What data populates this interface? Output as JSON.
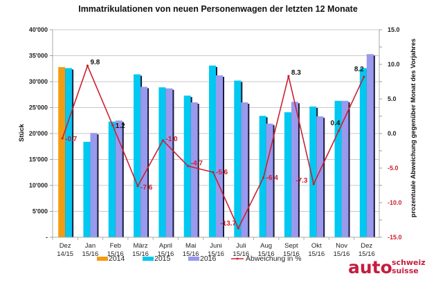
{
  "chart_data": {
    "type": "bar",
    "title": "Immatrikulationen von neuen Personenwagen der letzten 12 Monate",
    "ylabel": "Stück",
    "y2label": "prozentuale Abweichung gegenüber Monat des Vorjahres",
    "ylim": [
      0,
      40000
    ],
    "y2lim": [
      -15,
      15
    ],
    "grid": true,
    "legend_position": "bottom",
    "y_ticks": [
      "-",
      "5'000",
      "10'000",
      "15'000",
      "20'000",
      "25'000",
      "30'000",
      "35'000",
      "40'000"
    ],
    "y2_ticks": [
      "-15.0",
      "-10.0",
      "-5.0",
      "0.0",
      "5.0",
      "10.0",
      "15.0"
    ],
    "categories": [
      [
        "Dez",
        "14/15"
      ],
      [
        "Jan",
        "15/16"
      ],
      [
        "Feb",
        "15/16"
      ],
      [
        "März",
        "15/16"
      ],
      [
        "April",
        "15/16"
      ],
      [
        "Mai",
        "15/16"
      ],
      [
        "Juni",
        "15/16"
      ],
      [
        "Juli",
        "15/16"
      ],
      [
        "Aug",
        "15/16"
      ],
      [
        "Sept",
        "15/16"
      ],
      [
        "Okt",
        "15/16"
      ],
      [
        "Nov",
        "15/16"
      ],
      [
        "Dez",
        "15/16"
      ]
    ],
    "series": [
      {
        "name": "2014",
        "type": "bar",
        "color": "#f39c12",
        "values": [
          32800,
          null,
          null,
          null,
          null,
          null,
          null,
          null,
          null,
          null,
          null,
          null,
          null
        ]
      },
      {
        "name": "2015",
        "type": "bar",
        "color": "#00c8f0",
        "values": [
          32600,
          18400,
          22300,
          31400,
          28900,
          27300,
          33100,
          30200,
          23400,
          24100,
          25200,
          26300,
          32600
        ]
      },
      {
        "name": "2016",
        "type": "bar",
        "color": "#9999ee",
        "values": [
          null,
          20100,
          22500,
          29000,
          28700,
          26000,
          31200,
          26000,
          21900,
          26100,
          23300,
          26300,
          35300
        ]
      },
      {
        "name": "Abweichung in %",
        "type": "line",
        "axis": "right",
        "color": "#cc1f2f",
        "values": [
          -0.7,
          9.8,
          1.2,
          -7.6,
          -1.0,
          -4.7,
          -5.6,
          -13.7,
          -6.4,
          8.3,
          -7.3,
          0.4,
          8.2
        ]
      }
    ],
    "data_labels": [
      "-0.7",
      "9.8",
      "1.2",
      "-7.6",
      "-1.0",
      "-4.7",
      "-5.6",
      "-13.7",
      "-6.4",
      "8.3",
      "-7.3",
      "0.4",
      "8.2"
    ]
  },
  "legend": [
    {
      "label": "2014",
      "color": "#f39c12",
      "kind": "bar"
    },
    {
      "label": "2015",
      "color": "#00c8f0",
      "kind": "bar"
    },
    {
      "label": "2016",
      "color": "#9999ee",
      "kind": "bar"
    },
    {
      "label": "Abweichung in %",
      "color": "#cc1f2f",
      "kind": "line"
    }
  ],
  "logo": {
    "main": "auto",
    "line1": "schweiz",
    "line2": "suisse"
  }
}
